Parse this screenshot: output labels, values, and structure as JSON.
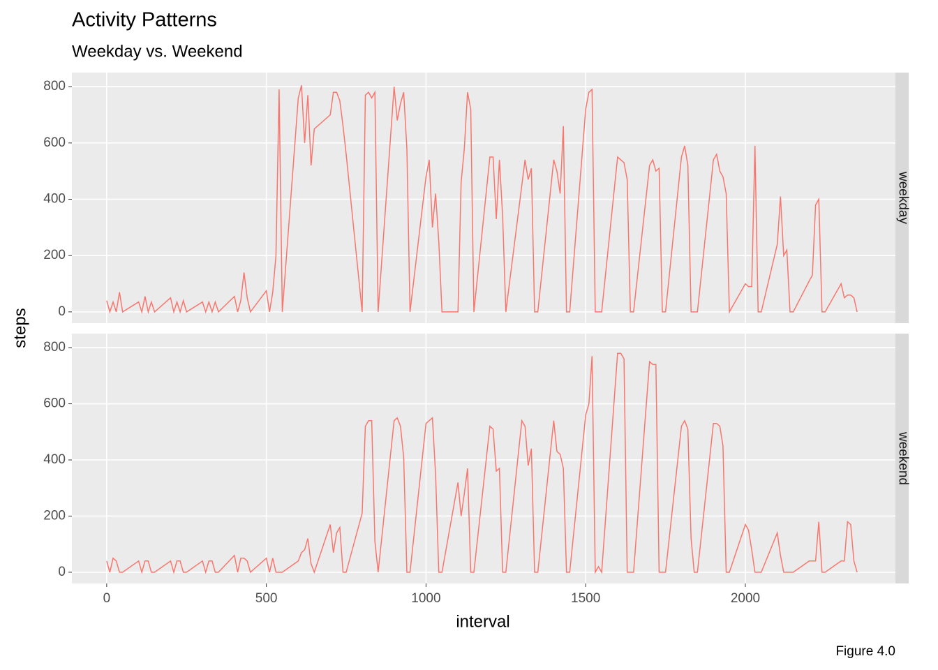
{
  "chart_data": {
    "type": "line",
    "title": "Activity Patterns",
    "subtitle": "Weekday vs. Weekend",
    "x_label": "interval",
    "y_label": "steps",
    "caption": "Figure 4.0",
    "color": "#F8766D",
    "xlim": [
      -109,
      2470
    ],
    "xticks": [
      0,
      500,
      1000,
      1500,
      2000
    ],
    "ylim": [
      -40,
      850
    ],
    "yticks": [
      0,
      200,
      400,
      600,
      800
    ],
    "grid": true,
    "x": [
      0,
      10,
      20,
      30,
      40,
      50,
      100,
      110,
      120,
      130,
      140,
      150,
      200,
      210,
      220,
      230,
      240,
      250,
      300,
      310,
      320,
      330,
      340,
      350,
      400,
      410,
      420,
      430,
      440,
      450,
      500,
      510,
      520,
      530,
      540,
      550,
      600,
      610,
      620,
      630,
      640,
      650,
      700,
      710,
      720,
      730,
      740,
      750,
      800,
      810,
      820,
      830,
      840,
      850,
      900,
      910,
      920,
      930,
      940,
      950,
      1000,
      1010,
      1020,
      1030,
      1040,
      1050,
      1100,
      1110,
      1120,
      1130,
      1140,
      1150,
      1200,
      1210,
      1220,
      1230,
      1240,
      1250,
      1300,
      1310,
      1320,
      1330,
      1340,
      1350,
      1400,
      1410,
      1420,
      1430,
      1440,
      1450,
      1500,
      1510,
      1520,
      1530,
      1540,
      1550,
      1600,
      1610,
      1620,
      1630,
      1640,
      1650,
      1700,
      1710,
      1720,
      1730,
      1740,
      1750,
      1800,
      1810,
      1820,
      1830,
      1840,
      1850,
      1900,
      1910,
      1920,
      1930,
      1940,
      1950,
      2000,
      2010,
      2020,
      2030,
      2040,
      2050,
      2100,
      2110,
      2120,
      2130,
      2140,
      2150,
      2200,
      2210,
      2220,
      2230,
      2240,
      2250,
      2300,
      2310,
      2320,
      2330,
      2340,
      2350
    ],
    "series": [
      {
        "name": "weekday",
        "values": [
          40,
          0,
          35,
          0,
          70,
          0,
          35,
          0,
          55,
          0,
          35,
          0,
          50,
          0,
          35,
          0,
          40,
          0,
          35,
          0,
          35,
          0,
          35,
          0,
          55,
          0,
          40,
          140,
          50,
          0,
          75,
          0,
          70,
          200,
          790,
          0,
          760,
          805,
          600,
          770,
          520,
          650,
          700,
          780,
          780,
          750,
          660,
          560,
          0,
          770,
          780,
          760,
          780,
          0,
          800,
          680,
          740,
          780,
          580,
          0,
          480,
          540,
          300,
          420,
          250,
          0,
          0,
          460,
          580,
          780,
          720,
          0,
          550,
          550,
          330,
          540,
          340,
          0,
          450,
          540,
          470,
          510,
          0,
          0,
          540,
          500,
          420,
          660,
          0,
          0,
          720,
          780,
          790,
          0,
          0,
          0,
          550,
          540,
          530,
          470,
          0,
          0,
          520,
          540,
          500,
          510,
          0,
          0,
          550,
          590,
          520,
          0,
          0,
          0,
          540,
          560,
          500,
          480,
          420,
          0,
          100,
          90,
          90,
          590,
          0,
          0,
          240,
          410,
          200,
          220,
          0,
          0,
          110,
          130,
          380,
          400,
          0,
          0,
          100,
          50,
          60,
          60,
          50,
          0
        ]
      },
      {
        "name": "weekend",
        "values": [
          40,
          0,
          50,
          40,
          0,
          0,
          40,
          0,
          40,
          40,
          0,
          0,
          40,
          0,
          40,
          40,
          0,
          0,
          40,
          0,
          40,
          40,
          0,
          0,
          60,
          0,
          50,
          50,
          40,
          0,
          50,
          0,
          50,
          0,
          0,
          0,
          40,
          70,
          80,
          120,
          30,
          0,
          170,
          70,
          140,
          160,
          0,
          0,
          210,
          520,
          540,
          540,
          110,
          0,
          540,
          550,
          520,
          410,
          0,
          0,
          530,
          540,
          550,
          350,
          0,
          0,
          320,
          200,
          280,
          370,
          0,
          0,
          520,
          510,
          360,
          370,
          0,
          0,
          540,
          520,
          380,
          440,
          0,
          0,
          540,
          430,
          420,
          370,
          0,
          0,
          560,
          600,
          770,
          0,
          20,
          0,
          780,
          780,
          760,
          0,
          0,
          0,
          750,
          740,
          740,
          0,
          0,
          0,
          520,
          540,
          510,
          120,
          0,
          0,
          530,
          530,
          520,
          450,
          0,
          0,
          170,
          150,
          80,
          0,
          0,
          0,
          140,
          60,
          0,
          0,
          0,
          0,
          40,
          40,
          40,
          180,
          0,
          0,
          40,
          40,
          180,
          170,
          40,
          0
        ]
      }
    ]
  }
}
